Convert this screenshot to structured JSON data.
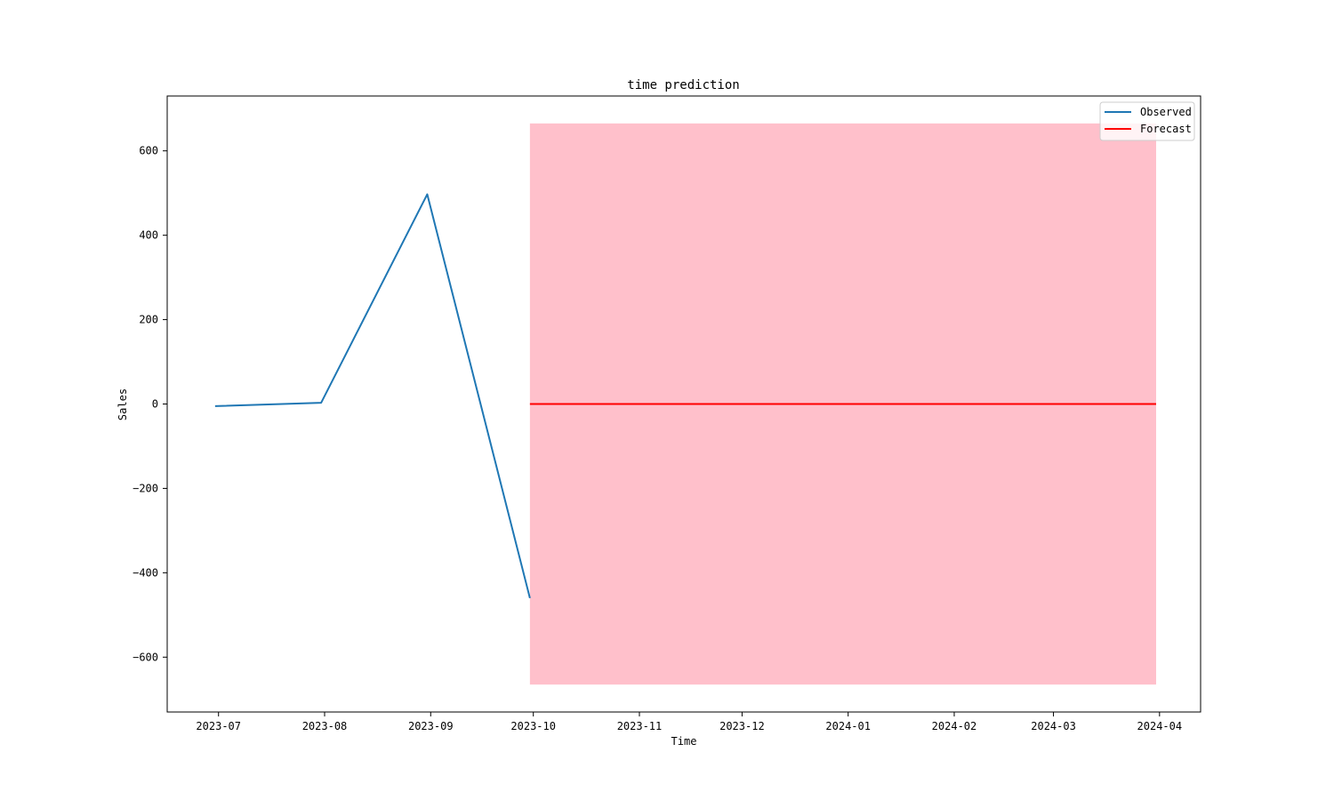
{
  "chart_data": {
    "type": "line",
    "title": "time prediction",
    "xlabel": "Time",
    "ylabel": "Sales",
    "xlim": [
      "2023-06-16",
      "2024-04-13"
    ],
    "ylim": [
      -730,
      730
    ],
    "x_ticks": [
      "2023-07-01",
      "2023-08-01",
      "2023-09-01",
      "2023-10-01",
      "2023-11-01",
      "2023-12-01",
      "2024-01-01",
      "2024-02-01",
      "2024-03-01",
      "2024-04-01"
    ],
    "x_tick_labels": [
      "2023-07",
      "2023-08",
      "2023-09",
      "2023-10",
      "2023-11",
      "2023-12",
      "2024-01",
      "2024-02",
      "2024-03",
      "2024-04"
    ],
    "y_ticks": [
      -600,
      -400,
      -200,
      0,
      200,
      400,
      600
    ],
    "y_tick_labels": [
      "−600",
      "−400",
      "−200",
      "0",
      "200",
      "400",
      "600"
    ],
    "grid": false,
    "legend_position": "top-right",
    "series": [
      {
        "name": "Observed",
        "color": "#1f77b4",
        "x": [
          "2023-06-30",
          "2023-07-31",
          "2023-08-31",
          "2023-09-30"
        ],
        "y": [
          -5,
          3,
          497,
          -460
        ]
      },
      {
        "name": "Forecast",
        "color": "#ff0000",
        "x": [
          "2023-09-30",
          "2024-03-31"
        ],
        "y": [
          0,
          0
        ]
      }
    ],
    "confidence_band": {
      "color": "#ffc0cb",
      "x": [
        "2023-09-30",
        "2024-03-31"
      ],
      "lower": [
        -665,
        -665
      ],
      "upper": [
        665,
        665
      ]
    }
  }
}
